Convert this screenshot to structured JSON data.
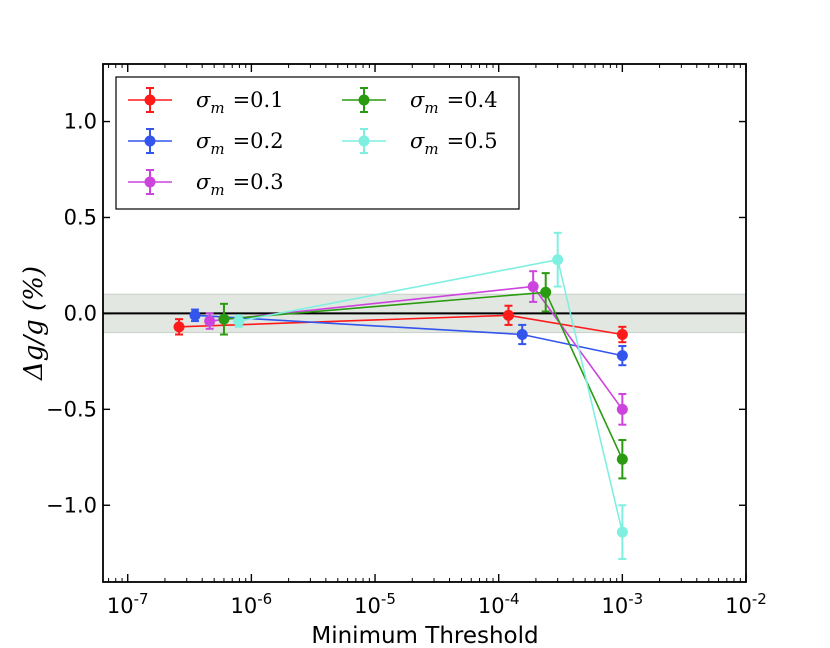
{
  "chart_data": {
    "type": "scatter",
    "title": "",
    "xlabel": "Minimum Threshold",
    "ylabel": "Δg/g  (%)",
    "xscale": "log",
    "xlim_exp": [
      -7.2,
      -2
    ],
    "ylim": [
      -1.4,
      1.3
    ],
    "x_ticks": [
      {
        "exp": -7,
        "base": "10",
        "sup": "-7"
      },
      {
        "exp": -6,
        "base": "10",
        "sup": "-6"
      },
      {
        "exp": -5,
        "base": "10",
        "sup": "-5"
      },
      {
        "exp": -4,
        "base": "10",
        "sup": "-4"
      },
      {
        "exp": -3,
        "base": "10",
        "sup": "-3"
      },
      {
        "exp": -2,
        "base": "10",
        "sup": "-2"
      }
    ],
    "y_ticks": [
      {
        "value": 1.0,
        "label": "1.0"
      },
      {
        "value": 0.5,
        "label": "0.5"
      },
      {
        "value": 0.0,
        "label": "0.0"
      },
      {
        "value": -0.5,
        "label": "−0.5"
      },
      {
        "value": -1.0,
        "label": "−1.0"
      }
    ],
    "band": {
      "ymin": -0.1,
      "ymax": 0.1,
      "color": "#e2e7e2"
    },
    "zero_line": 0,
    "legend_position": "upper-left",
    "series": [
      {
        "name": "σm =0.1",
        "symbol": "σ",
        "sub": "m",
        "eq": "=0.1",
        "color": "#ff1a1a",
        "points": [
          {
            "x": 2.6e-07,
            "y": -0.07,
            "err": 0.04
          },
          {
            "x": 0.00012,
            "y": -0.01,
            "err": 0.05
          },
          {
            "x": 0.001,
            "y": -0.11,
            "err": 0.04
          }
        ]
      },
      {
        "name": "σm =0.2",
        "symbol": "σ",
        "sub": "m",
        "eq": "=0.2",
        "color": "#3355ee",
        "points": [
          {
            "x": 3.5e-07,
            "y": -0.01,
            "err": 0.03
          },
          {
            "x": 0.000155,
            "y": -0.11,
            "err": 0.05
          },
          {
            "x": 0.001,
            "y": -0.22,
            "err": 0.05
          }
        ]
      },
      {
        "name": "σm =0.3",
        "symbol": "σ",
        "sub": "m",
        "eq": "=0.3",
        "color": "#cc44dd",
        "points": [
          {
            "x": 4.6e-07,
            "y": -0.04,
            "err": 0.04
          },
          {
            "x": 0.00019,
            "y": 0.14,
            "err": 0.08
          },
          {
            "x": 0.001,
            "y": -0.5,
            "err": 0.08
          }
        ]
      },
      {
        "name": "σm =0.4",
        "symbol": "σ",
        "sub": "m",
        "eq": "=0.4",
        "color": "#2a9a10",
        "points": [
          {
            "x": 6e-07,
            "y": -0.03,
            "err": 0.08
          },
          {
            "x": 0.00024,
            "y": 0.11,
            "err": 0.1
          },
          {
            "x": 0.001,
            "y": -0.76,
            "err": 0.1
          }
        ]
      },
      {
        "name": "σm =0.5",
        "symbol": "σ",
        "sub": "m",
        "eq": "=0.5",
        "color": "#7ff0e0",
        "points": [
          {
            "x": 7.9e-07,
            "y": -0.04,
            "err": 0.03
          },
          {
            "x": 0.0003,
            "y": 0.28,
            "err": 0.14
          },
          {
            "x": 0.001,
            "y": -1.14,
            "err": 0.14
          }
        ]
      }
    ]
  }
}
